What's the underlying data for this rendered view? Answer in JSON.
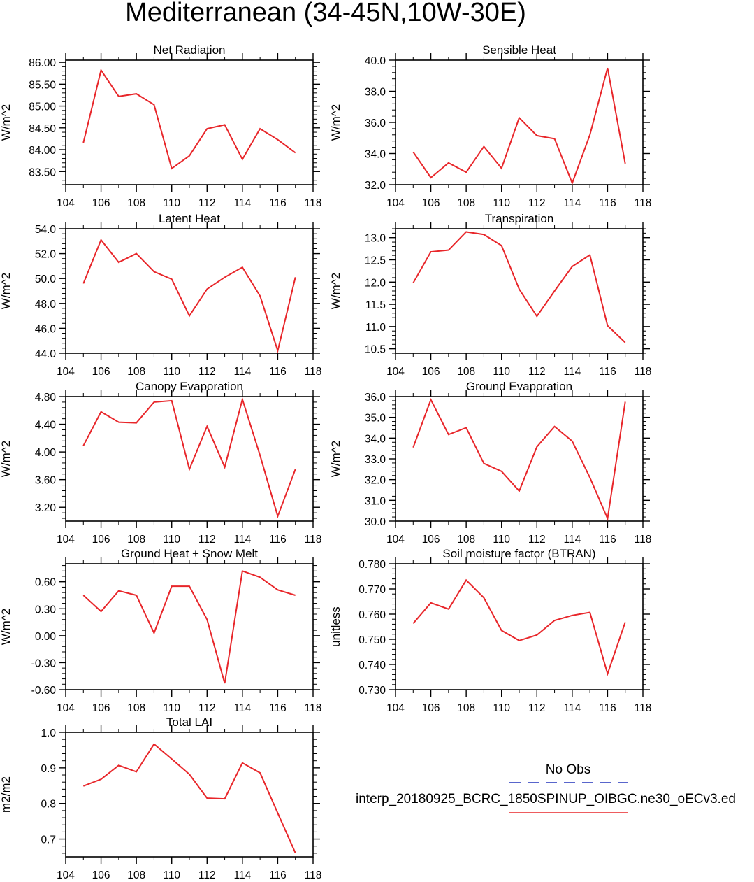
{
  "title": "Mediterranean (34-45N,10W-30E)",
  "colors": {
    "obs": "#2233bb",
    "model": "#e8262a",
    "axis": "#000000"
  },
  "legend": {
    "no_obs_label": "No Obs",
    "model_label": "interp_20180925_BCRC_1850SPINUP_OIBGC.ne30_oECv3.ed"
  },
  "chart_data": [
    {
      "type": "line",
      "title": "Net Radiation",
      "ylabel": "W/m^2",
      "x": [
        105,
        106,
        107,
        108,
        109,
        110,
        111,
        112,
        113,
        114,
        115,
        116,
        117
      ],
      "values": [
        84.16,
        85.82,
        85.22,
        85.28,
        85.03,
        83.57,
        83.86,
        84.48,
        84.57,
        83.78,
        84.48,
        84.23,
        83.93
      ],
      "xlim": [
        104,
        118
      ],
      "xticks": [
        104,
        106,
        108,
        110,
        112,
        114,
        116,
        118
      ],
      "xtick_labels": [
        "104",
        "106",
        "108",
        "110",
        "112",
        "114",
        "116",
        "118"
      ],
      "ylim": [
        83.2,
        86.05
      ],
      "yticks": [
        83.5,
        84,
        84.5,
        85,
        85.5,
        86
      ],
      "ytick_labels": [
        "83.50",
        "84.00",
        "84.50",
        "85.00",
        "85.50",
        "86.00"
      ],
      "yminor": 0.1
    },
    {
      "type": "line",
      "title": "Sensible Heat",
      "ylabel": "W/m^2",
      "x": [
        105,
        106,
        107,
        108,
        109,
        110,
        111,
        112,
        113,
        114,
        115,
        116,
        117
      ],
      "values": [
        34.1,
        32.45,
        33.4,
        32.8,
        34.45,
        33.05,
        36.3,
        35.15,
        34.95,
        32.1,
        35.2,
        39.5,
        33.35
      ],
      "xlim": [
        104,
        118
      ],
      "xticks": [
        104,
        106,
        108,
        110,
        112,
        114,
        116,
        118
      ],
      "xtick_labels": [
        "104",
        "106",
        "108",
        "110",
        "112",
        "114",
        "116",
        "118"
      ],
      "ylim": [
        32,
        40
      ],
      "yticks": [
        32,
        34,
        36,
        38,
        40
      ],
      "ytick_labels": [
        "32.0",
        "34.0",
        "36.0",
        "38.0",
        "40.0"
      ],
      "yminor": 0.4
    },
    {
      "type": "line",
      "title": "Latent Heat",
      "ylabel": "W/m^2",
      "x": [
        105,
        106,
        107,
        108,
        109,
        110,
        111,
        112,
        113,
        114,
        115,
        116,
        117
      ],
      "values": [
        49.6,
        53.1,
        51.3,
        52.0,
        50.55,
        49.95,
        47.0,
        49.15,
        50.1,
        50.9,
        48.6,
        44.2,
        50.1
      ],
      "xlim": [
        104,
        118
      ],
      "xticks": [
        104,
        106,
        108,
        110,
        112,
        114,
        116,
        118
      ],
      "xtick_labels": [
        "104",
        "106",
        "108",
        "110",
        "112",
        "114",
        "116",
        "118"
      ],
      "ylim": [
        44,
        54
      ],
      "yticks": [
        44,
        46,
        48,
        50,
        52,
        54
      ],
      "ytick_labels": [
        "44.0",
        "46.0",
        "48.0",
        "50.0",
        "52.0",
        "54.0"
      ],
      "yminor": 0.4
    },
    {
      "type": "line",
      "title": "Transpiration",
      "ylabel": "W/m^2",
      "x": [
        105,
        106,
        107,
        108,
        109,
        110,
        111,
        112,
        113,
        114,
        115,
        116,
        117
      ],
      "values": [
        11.98,
        12.68,
        12.72,
        13.13,
        13.07,
        12.82,
        11.84,
        11.23,
        11.8,
        12.35,
        12.61,
        11.02,
        10.64
      ],
      "xlim": [
        104,
        118
      ],
      "xticks": [
        104,
        106,
        108,
        110,
        112,
        114,
        116,
        118
      ],
      "xtick_labels": [
        "104",
        "106",
        "108",
        "110",
        "112",
        "114",
        "116",
        "118"
      ],
      "ylim": [
        10.4,
        13.2
      ],
      "yticks": [
        10.5,
        11,
        11.5,
        12,
        12.5,
        13
      ],
      "ytick_labels": [
        "10.5",
        "11.0",
        "11.5",
        "12.0",
        "12.5",
        "13.0"
      ],
      "yminor": 0.1
    },
    {
      "type": "line",
      "title": "Canopy Evaporation",
      "ylabel": "W/m^2",
      "x": [
        105,
        106,
        107,
        108,
        109,
        110,
        111,
        112,
        113,
        114,
        115,
        116,
        117
      ],
      "values": [
        4.09,
        4.58,
        4.43,
        4.42,
        4.72,
        4.74,
        3.75,
        4.37,
        3.78,
        4.76,
        3.95,
        3.07,
        3.75
      ],
      "xlim": [
        104,
        118
      ],
      "xticks": [
        104,
        106,
        108,
        110,
        112,
        114,
        116,
        118
      ],
      "xtick_labels": [
        "104",
        "106",
        "108",
        "110",
        "112",
        "114",
        "116",
        "118"
      ],
      "ylim": [
        3.0,
        4.8
      ],
      "yticks": [
        3.2,
        3.6,
        4.0,
        4.4,
        4.8
      ],
      "ytick_labels": [
        "3.20",
        "3.60",
        "4.00",
        "4.40",
        "4.80"
      ],
      "yminor": 0.08
    },
    {
      "type": "line",
      "title": "Ground Evaporation",
      "ylabel": "W/m^2",
      "x": [
        105,
        106,
        107,
        108,
        109,
        110,
        111,
        112,
        113,
        114,
        115,
        116,
        117
      ],
      "values": [
        33.55,
        35.85,
        34.17,
        34.5,
        32.78,
        32.4,
        31.45,
        33.58,
        34.56,
        33.85,
        32.1,
        30.12,
        35.75
      ],
      "xlim": [
        104,
        118
      ],
      "xticks": [
        104,
        106,
        108,
        110,
        112,
        114,
        116,
        118
      ],
      "xtick_labels": [
        "104",
        "106",
        "108",
        "110",
        "112",
        "114",
        "116",
        "118"
      ],
      "ylim": [
        30,
        36
      ],
      "yticks": [
        30,
        31,
        32,
        33,
        34,
        35,
        36
      ],
      "ytick_labels": [
        "30.0",
        "31.0",
        "32.0",
        "33.0",
        "34.0",
        "35.0",
        "36.0"
      ],
      "yminor": 0.2
    },
    {
      "type": "line",
      "title": "Ground Heat + Snow Melt",
      "ylabel": "W/m^2",
      "x": [
        105,
        106,
        107,
        108,
        109,
        110,
        111,
        112,
        113,
        114,
        115,
        116,
        117
      ],
      "values": [
        0.45,
        0.27,
        0.5,
        0.45,
        0.03,
        0.55,
        0.55,
        0.18,
        -0.53,
        0.72,
        0.65,
        0.51,
        0.45
      ],
      "xlim": [
        104,
        118
      ],
      "xticks": [
        104,
        106,
        108,
        110,
        112,
        114,
        116,
        118
      ],
      "xtick_labels": [
        "104",
        "106",
        "108",
        "110",
        "112",
        "114",
        "116",
        "118"
      ],
      "ylim": [
        -0.6,
        0.8
      ],
      "yticks": [
        -0.6,
        -0.3,
        0,
        0.3,
        0.6
      ],
      "ytick_labels": [
        "-0.60",
        "-0.30",
        "0.00",
        "0.30",
        "0.60"
      ],
      "yminor": 0.06
    },
    {
      "type": "line",
      "title": "Soil moisture factor (BTRAN)",
      "ylabel": "unitless",
      "x": [
        105,
        106,
        107,
        108,
        109,
        110,
        111,
        112,
        113,
        114,
        115,
        116,
        117
      ],
      "values": [
        0.7563,
        0.7645,
        0.762,
        0.7735,
        0.7665,
        0.7535,
        0.7495,
        0.7517,
        0.7575,
        0.7595,
        0.7607,
        0.7363,
        0.7568
      ],
      "xlim": [
        104,
        118
      ],
      "xticks": [
        104,
        106,
        108,
        110,
        112,
        114,
        116,
        118
      ],
      "xtick_labels": [
        "104",
        "106",
        "108",
        "110",
        "112",
        "114",
        "116",
        "118"
      ],
      "ylim": [
        0.73,
        0.78
      ],
      "yticks": [
        0.73,
        0.74,
        0.75,
        0.76,
        0.77,
        0.78
      ],
      "ytick_labels": [
        "0.730",
        "0.740",
        "0.750",
        "0.760",
        "0.770",
        "0.780"
      ],
      "yminor": 0.002
    },
    {
      "type": "line",
      "title": "Total LAI",
      "ylabel": "m2/m2",
      "x": [
        105,
        106,
        107,
        108,
        109,
        110,
        111,
        112,
        113,
        114,
        115,
        116,
        117
      ],
      "values": [
        0.849,
        0.868,
        0.907,
        0.889,
        0.967,
        0.925,
        0.882,
        0.815,
        0.813,
        0.914,
        0.886,
        0.773,
        0.661
      ],
      "xlim": [
        104,
        118
      ],
      "xticks": [
        104,
        106,
        108,
        110,
        112,
        114,
        116,
        118
      ],
      "xtick_labels": [
        "104",
        "106",
        "108",
        "110",
        "112",
        "114",
        "116",
        "118"
      ],
      "ylim": [
        0.65,
        1.0
      ],
      "yticks": [
        0.7,
        0.8,
        0.9,
        1.0
      ],
      "ytick_labels": [
        "0.7",
        "0.8",
        "0.9",
        "1.0"
      ],
      "yminor": 0.02
    }
  ]
}
